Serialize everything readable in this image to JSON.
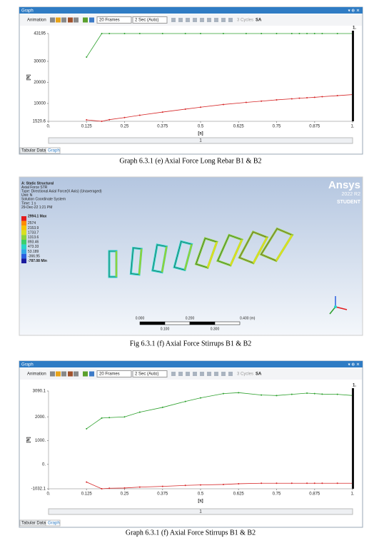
{
  "chart_data": [
    {
      "type": "line",
      "window_title": "Graph",
      "toolbar": [
        "Animation",
        "20 Frames",
        "2 Sec (Auto)",
        "3 Cycles",
        "SA"
      ],
      "y_label": "[N]",
      "x_label": "[s]",
      "end_label": "1.",
      "slider_label": "1",
      "tabs": [
        "Tabular Data",
        "Graph"
      ],
      "x": [
        0.125,
        0.175,
        0.2,
        0.25,
        0.3,
        0.375,
        0.45,
        0.5,
        0.575,
        0.65,
        0.7,
        0.75,
        0.8,
        0.825,
        0.85,
        0.875,
        0.9,
        0.95,
        1
      ],
      "series": [
        {
          "color": "#2ca02c",
          "values": [
            32000,
            43195,
            43195,
            43195,
            43195,
            43195,
            43195,
            43195,
            43195,
            43195,
            43195,
            43195,
            43195,
            43195,
            43195,
            43195,
            43195,
            43195,
            43195
          ]
        },
        {
          "color": "#d62728",
          "values": [
            2200,
            1520.6,
            2300,
            3300,
            4400,
            5900,
            7300,
            8200,
            9500,
            10500,
            11100,
            11700,
            12200,
            12500,
            12700,
            12900,
            13200,
            13700,
            14200
          ]
        }
      ],
      "xlim": [
        0,
        1
      ],
      "ylim": [
        1520.6,
        43195
      ],
      "xticks": [
        {
          "value": 0,
          "label": "0."
        },
        0.125,
        0.25,
        0.375,
        0.5,
        0.625,
        0.75,
        0.875,
        {
          "value": 1,
          "label": "1."
        }
      ],
      "yticks": [
        1520.6,
        10000,
        20000,
        30000,
        43195
      ],
      "caption": "Graph 6.3.1 (e) Axial Force Long Rebar B1 & B2"
    },
    {
      "type": "line",
      "window_title": "Graph",
      "toolbar": [
        "Animation",
        "20 Frames",
        "2 Sec (Auto)",
        "3 Cycles",
        "SA"
      ],
      "y_label": "[N]",
      "x_label": "[s]",
      "end_label": "1.",
      "slider_label": "1",
      "tabs": [
        "Tabular Data",
        "Graph"
      ],
      "x": [
        0.125,
        0.175,
        0.2,
        0.25,
        0.3,
        0.375,
        0.45,
        0.5,
        0.575,
        0.625,
        0.7,
        0.75,
        0.8,
        0.85,
        0.875,
        0.9,
        0.95,
        1
      ],
      "series": [
        {
          "color": "#2ca02c",
          "values": [
            1500,
            1950,
            1970,
            2000,
            2200,
            2400,
            2650,
            2800,
            2980,
            3020,
            2920,
            2900,
            2950,
            3000,
            2980,
            2960,
            2950,
            2900
          ]
        },
        {
          "color": "#d62728",
          "values": [
            -750,
            -1032.1,
            -1010,
            -1000,
            -960,
            -930,
            -890,
            -870,
            -850,
            -820,
            -800,
            -800,
            -800,
            -800,
            -800,
            -800,
            -800,
            -800
          ]
        }
      ],
      "xlim": [
        0,
        1
      ],
      "ylim": [
        -1032.1,
        3090.1
      ],
      "xticks": [
        {
          "value": 0,
          "label": "0."
        },
        0.125,
        0.25,
        0.375,
        0.5,
        0.625,
        0.75,
        0.875,
        {
          "value": 1,
          "label": "1."
        }
      ],
      "yticks": [
        -1032.1,
        {
          "value": 0,
          "label": "0."
        },
        {
          "value": 1000,
          "label": "1000."
        },
        {
          "value": 2000,
          "label": "2000."
        },
        3090.1
      ],
      "caption": "Graph 6.3.1 (f) Axial Force Stirrups B1 & B2"
    }
  ],
  "figure": {
    "header_lines": [
      "A: Static Structural",
      "Axial Force STR",
      "Type: Directional Axial Force(X Axis) (Unaveraged)",
      "Unit: N",
      "Solution Coordinate System",
      "Time: 1 s",
      "29-Dec-22 1:21 PM"
    ],
    "legend": [
      "2994.1 Max",
      "2574",
      "2153.9",
      "1733.7",
      "1313.6",
      "893.46",
      "473.33",
      "53.189",
      "-366.95",
      "-787.08 Min"
    ],
    "logo": [
      "Ansys",
      "2022 R2",
      "STUDENT"
    ],
    "scale_top": [
      "0.000",
      "0.200",
      "0.400 (m)"
    ],
    "scale_bottom": [
      "0.100",
      "0.300"
    ],
    "caption": "Fig 6.3.1 (f) Axial Force Stirrups B1 & B2"
  }
}
